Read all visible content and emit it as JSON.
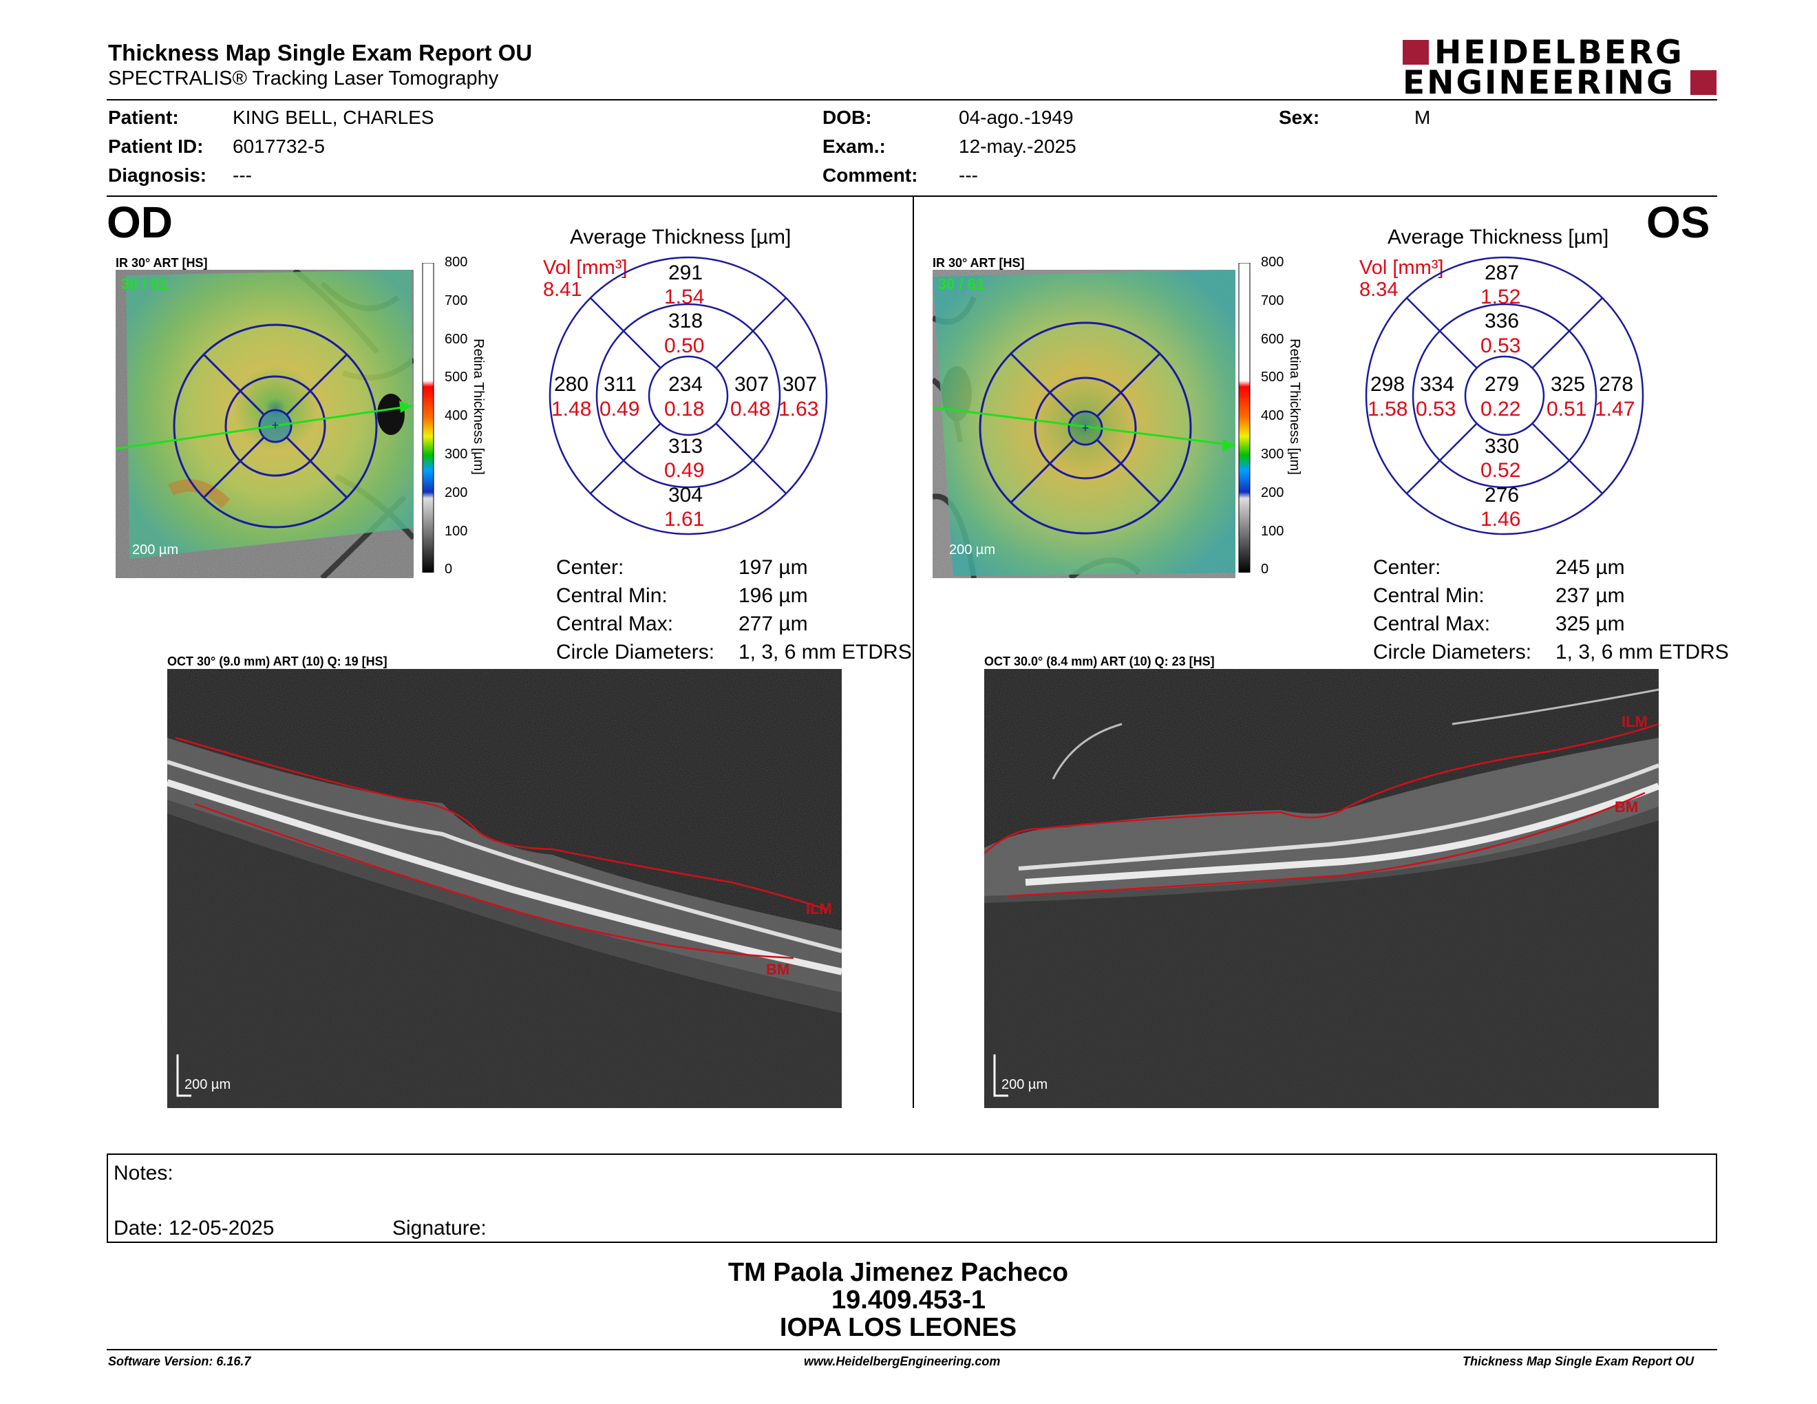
{
  "header": {
    "title": "Thickness Map Single Exam Report OU",
    "subtitle": "SPECTRALIS® Tracking Laser Tomography",
    "logo_line1": "HEIDELBERG",
    "logo_line2": "ENGINEERING"
  },
  "patient": {
    "patient_label": "Patient:",
    "patient_value": "KING BELL, CHARLES",
    "id_label": "Patient ID:",
    "id_value": "6017732-5",
    "diag_label": "Diagnosis:",
    "diag_value": "---",
    "dob_label": "DOB:",
    "dob_value": "04-ago.-1949",
    "exam_label": "Exam.:",
    "exam_value": "12-may.-2025",
    "comment_label": "Comment:",
    "comment_value": "---",
    "sex_label": "Sex:",
    "sex_value": "M"
  },
  "scale_ticks": [
    "800",
    "700",
    "600",
    "500",
    "400",
    "300",
    "200",
    "100",
    "0"
  ],
  "scale_title": "Retina Thickness [µm]",
  "od": {
    "eye": "OD",
    "fundus_title": "IR 30° ART [HS]",
    "fundus_count": "30 / 61",
    "scale_bar": "200 µm",
    "avg_title": "Average Thickness [µm]",
    "vol_label": "Vol [mm³]",
    "vol_value": "8.41",
    "grid": {
      "center_t": "234",
      "center_v": "0.18",
      "inner_sup_t": "318",
      "inner_sup_v": "0.50",
      "inner_inf_t": "313",
      "inner_inf_v": "0.49",
      "inner_left_t": "311",
      "inner_left_v": "0.49",
      "inner_right_t": "307",
      "inner_right_v": "0.48",
      "outer_sup_t": "291",
      "outer_sup_v": "1.54",
      "outer_inf_t": "304",
      "outer_inf_v": "1.61",
      "outer_left_t": "280",
      "outer_left_v": "1.48",
      "outer_right_t": "307",
      "outer_right_v": "1.63"
    },
    "stats": {
      "center_label": "Center:",
      "center_value": "197 µm",
      "min_label": "Central Min:",
      "min_value": "196 µm",
      "max_label": "Central Max:",
      "max_value": "277 µm",
      "circ_label": "Circle Diameters:",
      "circ_value": "1, 3, 6 mm ETDRS"
    },
    "oct_title": "OCT 30° (9.0 mm) ART (10) Q: 19 [HS]",
    "oct_scale": "200 µm",
    "ilm": "ILM",
    "bm": "BM"
  },
  "os": {
    "eye": "OS",
    "fundus_title": "IR 30° ART [HS]",
    "fundus_count": "30 / 61",
    "scale_bar": "200 µm",
    "avg_title": "Average Thickness [µm]",
    "vol_label": "Vol [mm³]",
    "vol_value": "8.34",
    "grid": {
      "center_t": "279",
      "center_v": "0.22",
      "inner_sup_t": "336",
      "inner_sup_v": "0.53",
      "inner_inf_t": "330",
      "inner_inf_v": "0.52",
      "inner_left_t": "334",
      "inner_left_v": "0.53",
      "inner_right_t": "325",
      "inner_right_v": "0.51",
      "outer_sup_t": "287",
      "outer_sup_v": "1.52",
      "outer_inf_t": "276",
      "outer_inf_v": "1.46",
      "outer_left_t": "298",
      "outer_left_v": "1.58",
      "outer_right_t": "278",
      "outer_right_v": "1.47"
    },
    "stats": {
      "center_label": "Center:",
      "center_value": "245 µm",
      "min_label": "Central Min:",
      "min_value": "237 µm",
      "max_label": "Central Max:",
      "max_value": "325 µm",
      "circ_label": "Circle Diameters:",
      "circ_value": "1, 3, 6 mm ETDRS"
    },
    "oct_title": "OCT 30.0° (8.4 mm) ART (10) Q: 23 [HS]",
    "oct_scale": "200 µm",
    "ilm": "ILM",
    "bm": "BM"
  },
  "notes": {
    "notes_label": "Notes:",
    "date_label": "Date: 12-05-2025",
    "signature_label": "Signature:"
  },
  "signer": {
    "name": "TM Paola Jimenez Pacheco",
    "id": "19.409.453-1",
    "institution": "IOPA LOS LEONES"
  },
  "footer": {
    "software": "Software Version: 6.16.7",
    "website": "www.HeidelbergEngineering.com",
    "report": "Thickness Map Single Exam Report OU"
  },
  "colors": {
    "accent_red": "#e30613",
    "logo_red": "#a31c37",
    "grid_blue": "#1a1aa0"
  }
}
